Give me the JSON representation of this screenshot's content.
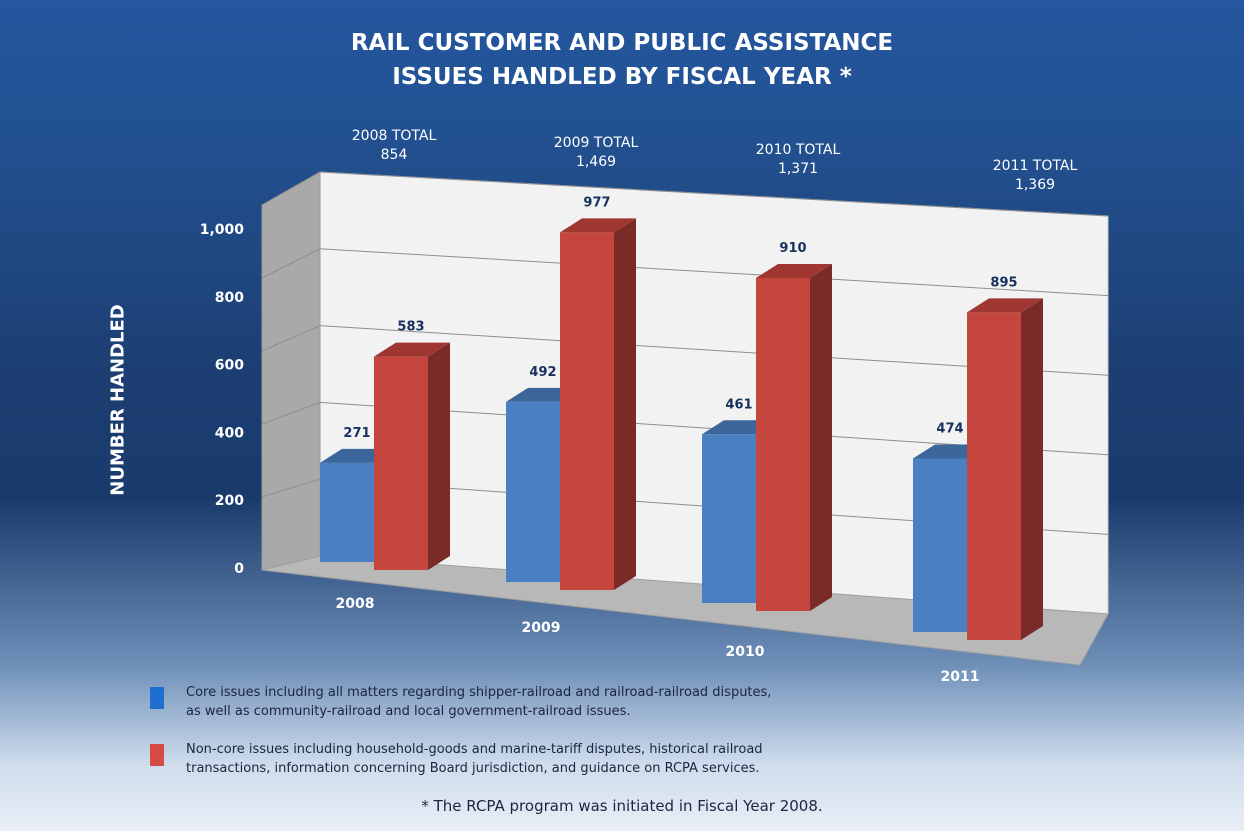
{
  "chart_data": {
    "type": "bar",
    "title_lines": [
      "RAIL CUSTOMER AND PUBLIC ASSISTANCE",
      "ISSUES HANDLED BY FISCAL YEAR  *"
    ],
    "ylabel": "NUMBER HANDLED",
    "categories": [
      "2008",
      "2009",
      "2010",
      "2011"
    ],
    "series": [
      {
        "values": [
          271,
          492,
          461,
          474
        ],
        "color": "#4a7fc1"
      },
      {
        "values": [
          583,
          977,
          910,
          895
        ],
        "color": "#c5453f"
      }
    ],
    "ylim": [
      0,
      1000
    ],
    "yticks": [
      "0",
      "200",
      "400",
      "600",
      "800",
      "1,000"
    ],
    "totals": [
      {
        "label": "2008 TOTAL",
        "value": "854"
      },
      {
        "label": "2009 TOTAL",
        "value": "1,469"
      },
      {
        "label": "2010 TOTAL",
        "value": "1,371"
      },
      {
        "label": "2011 TOTAL",
        "value": "1,369"
      }
    ],
    "grid": true,
    "legend": [
      {
        "text_lines": [
          "Core issues including all matters regarding shipper-railroad and railroad-railroad disputes,",
          "as well as community-railroad and local government-railroad issues."
        ],
        "color": "#1f6fd0"
      },
      {
        "text_lines": [
          "Non-core issues including household-goods and marine-tariff disputes, historical railroad",
          "transactions, information concerning Board jurisdiction, and guidance on RCPA services."
        ],
        "color": "#d64a45"
      }
    ],
    "footnote": "* The RCPA program was initiated in Fiscal Year 2008."
  }
}
